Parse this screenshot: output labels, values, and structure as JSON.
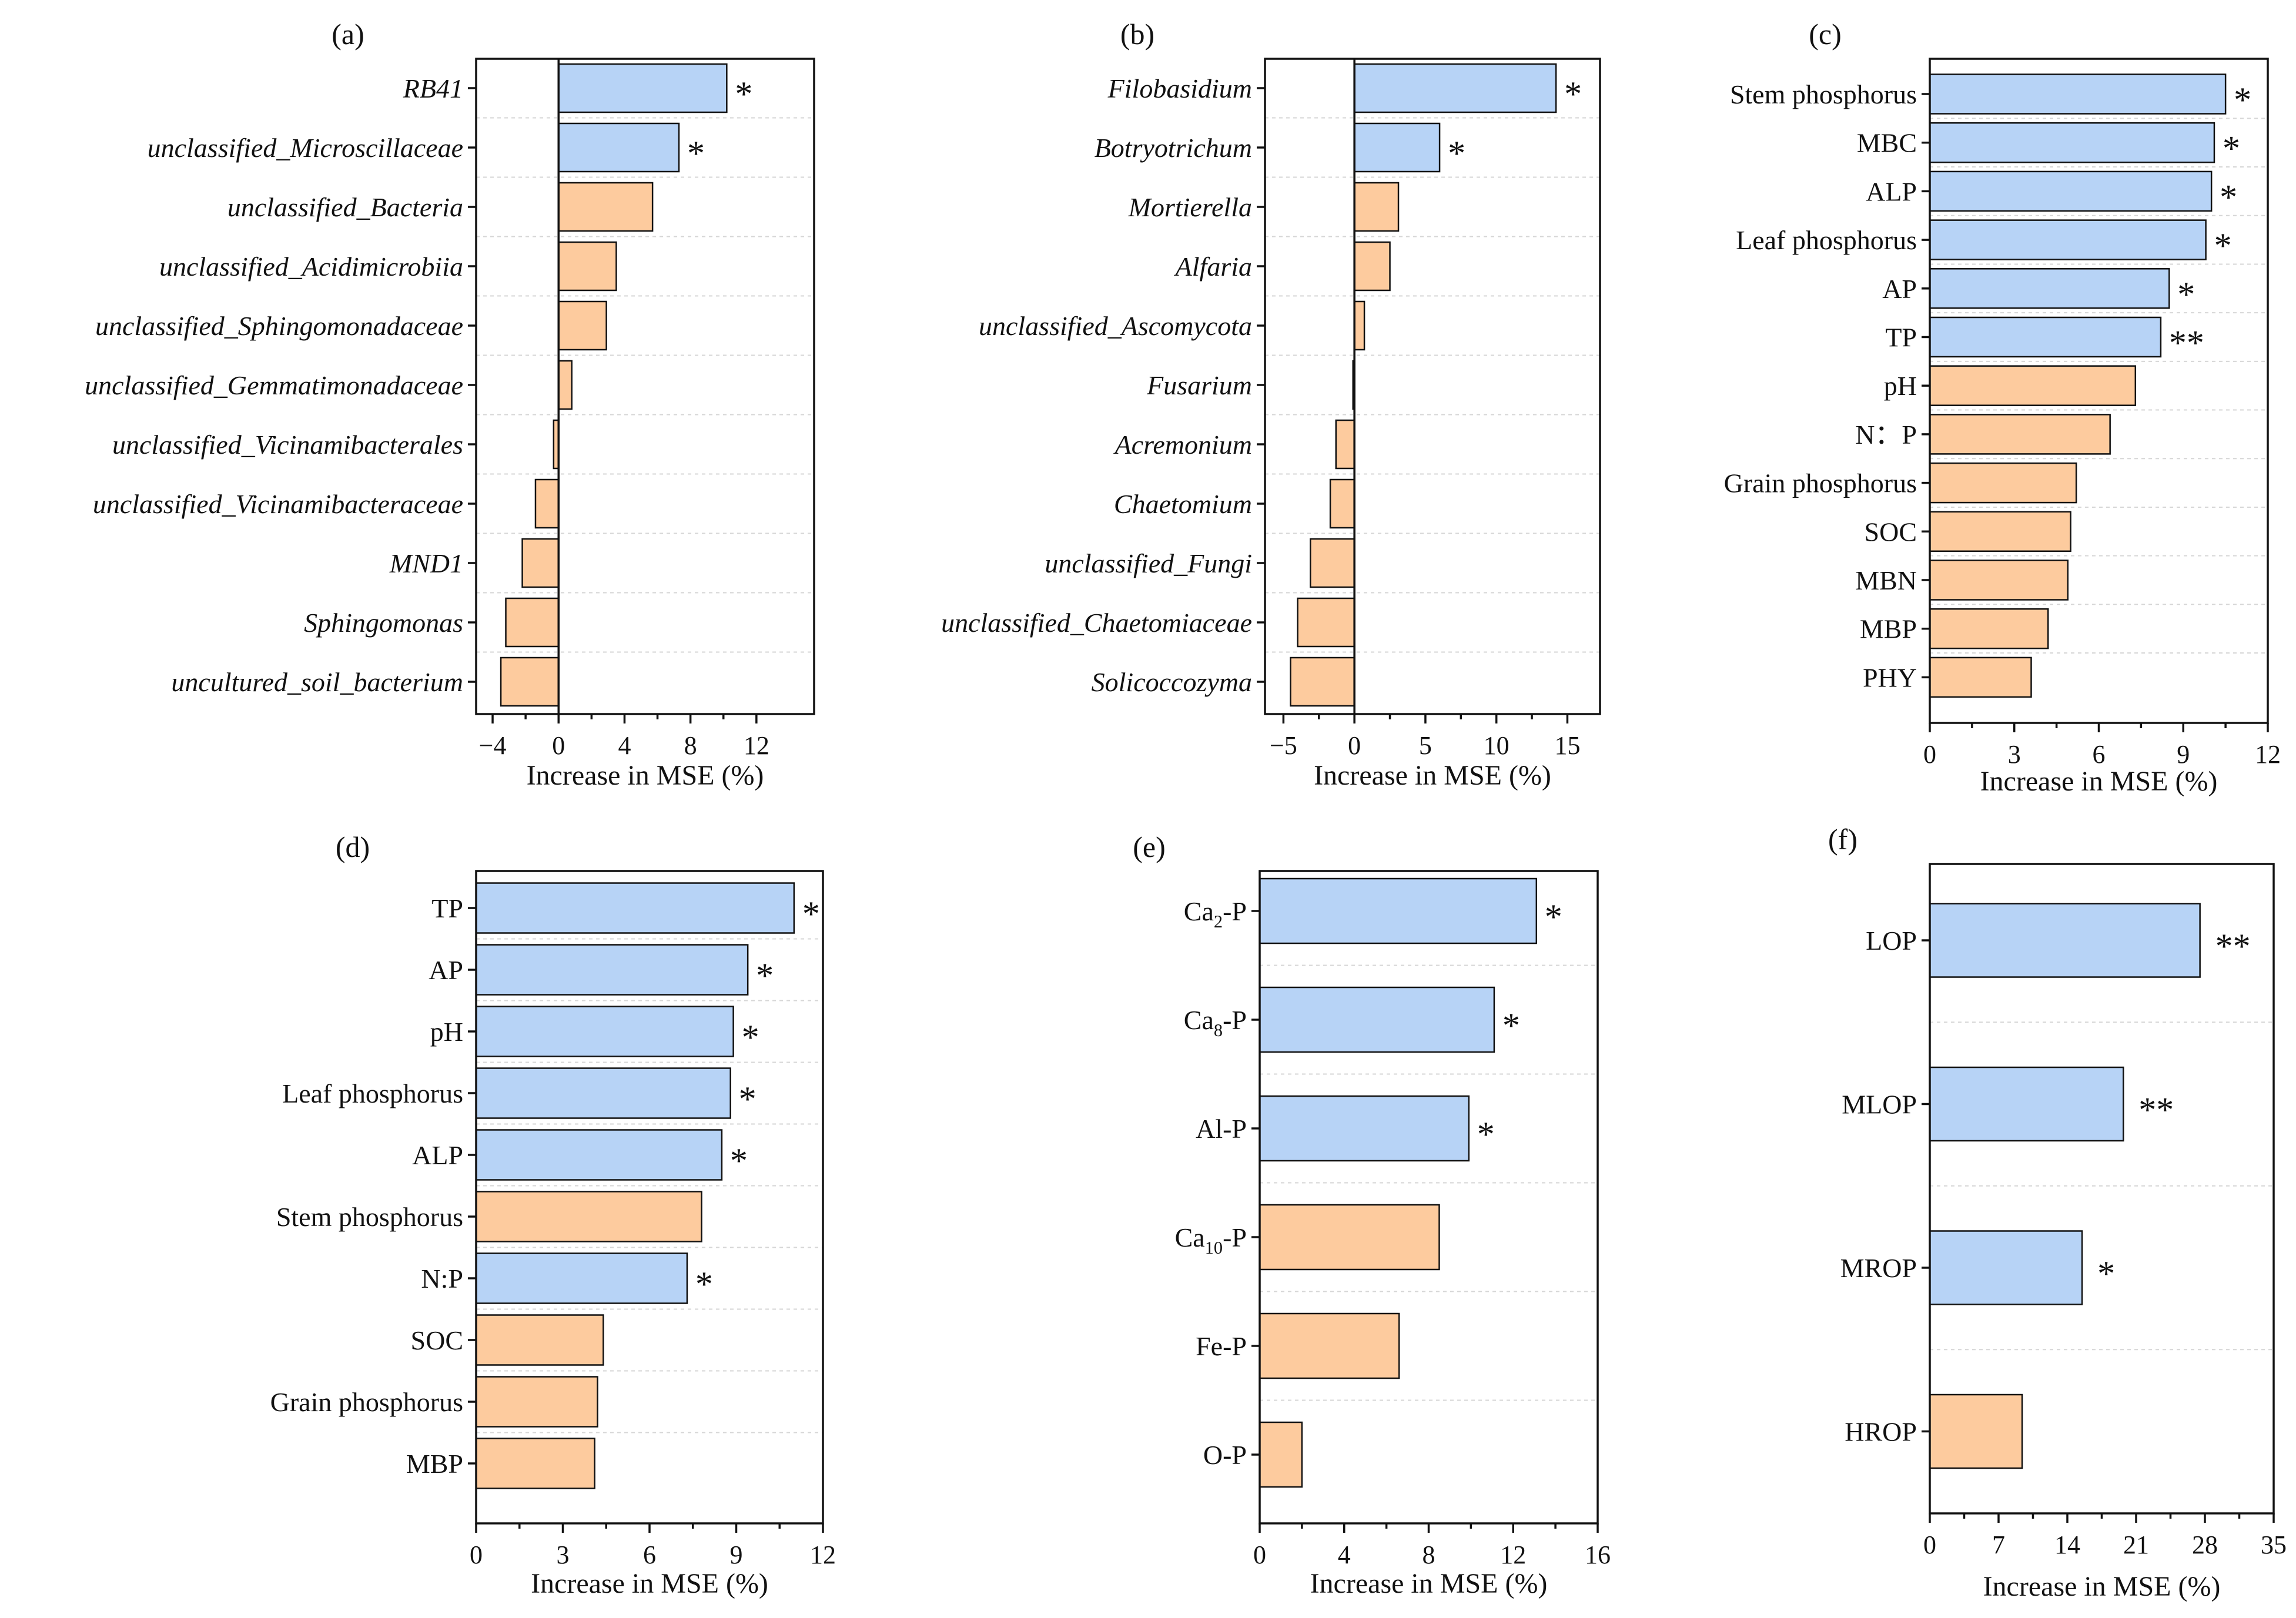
{
  "colors": {
    "significant": "#b7d3f6",
    "non_significant": "#fdcb9e",
    "axis": "#111111",
    "grid": "#d6d6d6"
  },
  "chart_data": [
    {
      "panel_label": "(a)",
      "type": "bar",
      "orientation": "horizontal",
      "italic_labels": true,
      "xlabel": "Increase in MSE (%)",
      "xlim": [
        -5,
        15.5
      ],
      "xticks": [
        -4,
        0,
        4,
        8,
        12
      ],
      "xtick_labels": [
        "−4",
        "0",
        "4",
        "8",
        "12"
      ],
      "categories": [
        "RB41",
        "unclassified_Microscillaceae",
        "unclassified_Bacteria",
        "unclassified_Acidimicrobiia",
        "unclassified_Sphingomonadaceae",
        "unclassified_Gemmatimonadaceae",
        "unclassified_Vicinamibacterales",
        "unclassified_Vicinamibacteraceae",
        "MND1",
        "Sphingomonas",
        "uncultured_soil_bacterium"
      ],
      "values": [
        10.2,
        7.3,
        5.7,
        3.5,
        2.9,
        0.8,
        -0.3,
        -1.4,
        -2.2,
        -3.2,
        -3.5
      ],
      "significance": [
        "*",
        "*",
        "",
        "",
        "",
        "",
        "",
        "",
        "",
        "",
        ""
      ]
    },
    {
      "panel_label": "(b)",
      "type": "bar",
      "orientation": "horizontal",
      "italic_labels": true,
      "xlabel": "Increase in MSE (%)",
      "xlim": [
        -6.3,
        17.3
      ],
      "xticks": [
        -5,
        0,
        5,
        10,
        15
      ],
      "xtick_labels": [
        "−5",
        "0",
        "5",
        "10",
        "15"
      ],
      "categories": [
        "Filobasidium",
        "Botryotrichum",
        "Mortierella",
        "Alfaria",
        "unclassified_Ascomycota",
        "Fusarium",
        "Acremonium",
        "Chaetomium",
        "unclassified_Fungi",
        "unclassified_Chaetomiaceae",
        "Solicoccozyma"
      ],
      "values": [
        14.2,
        6.0,
        3.1,
        2.5,
        0.7,
        -0.1,
        -1.3,
        -1.7,
        -3.1,
        -4.0,
        -4.5
      ],
      "significance": [
        "*",
        "*",
        "",
        "",
        "",
        "",
        "",
        "",
        "",
        "",
        ""
      ]
    },
    {
      "panel_label": "(c)",
      "type": "bar",
      "orientation": "horizontal",
      "italic_labels": false,
      "xlabel": "Increase in MSE (%)",
      "xlim": [
        0,
        12
      ],
      "xticks": [
        0,
        3,
        6,
        9,
        12
      ],
      "xtick_labels": [
        "0",
        "3",
        "6",
        "9",
        "12"
      ],
      "categories": [
        "Stem phosphorus",
        "MBC",
        "ALP",
        "Leaf phosphorus",
        "AP",
        "TP",
        "pH",
        "N：P",
        "Grain phosphorus",
        "SOC",
        "MBN",
        "MBP",
        "PHY"
      ],
      "values": [
        10.5,
        10.1,
        10.0,
        9.8,
        8.5,
        8.2,
        7.3,
        6.4,
        5.2,
        5.0,
        4.9,
        4.2,
        3.6
      ],
      "significance": [
        "*",
        "*",
        "*",
        "*",
        "*",
        "**",
        "",
        "",
        "",
        "",
        "",
        "",
        ""
      ]
    },
    {
      "panel_label": "(d)",
      "type": "bar",
      "orientation": "horizontal",
      "italic_labels": false,
      "xlabel": "Increase in MSE (%)",
      "xlim": [
        0,
        12
      ],
      "xticks": [
        0,
        3,
        6,
        9,
        12
      ],
      "xtick_labels": [
        "0",
        "3",
        "6",
        "9",
        "12"
      ],
      "categories": [
        "TP",
        "AP",
        "pH",
        "Leaf phosphorus",
        "ALP",
        "Stem phosphorus",
        "N:P",
        "SOC",
        "Grain phosphorus",
        "MBP"
      ],
      "values": [
        11.0,
        9.4,
        8.9,
        8.8,
        8.5,
        7.8,
        7.3,
        4.4,
        4.2,
        4.1
      ],
      "significance": [
        "*",
        "*",
        "*",
        "*",
        "*",
        "",
        "*",
        "",
        "",
        ""
      ]
    },
    {
      "panel_label": "(e)",
      "type": "bar",
      "orientation": "horizontal",
      "italic_labels": false,
      "xlabel": "Increase in MSE (%)",
      "xlim": [
        0,
        16
      ],
      "xticks": [
        0,
        4,
        8,
        12,
        16
      ],
      "xtick_labels": [
        "0",
        "4",
        "8",
        "12",
        "16"
      ],
      "categories": [
        {
          "main": "Ca",
          "sub": "2",
          "tail": "-P"
        },
        {
          "main": "Ca",
          "sub": "8",
          "tail": "-P"
        },
        {
          "main": "Al-P",
          "sub": "",
          "tail": ""
        },
        {
          "main": "Ca",
          "sub": "10",
          "tail": "-P"
        },
        {
          "main": "Fe-P",
          "sub": "",
          "tail": ""
        },
        {
          "main": "O-P",
          "sub": "",
          "tail": ""
        }
      ],
      "values": [
        13.1,
        11.1,
        9.9,
        8.5,
        6.6,
        2.0
      ],
      "significance": [
        "*",
        "*",
        "*",
        "",
        "",
        ""
      ]
    },
    {
      "panel_label": "(f)",
      "type": "bar",
      "orientation": "horizontal",
      "italic_labels": false,
      "xlabel": "Increase in MSE (%)",
      "xlim": [
        0,
        35
      ],
      "xticks": [
        0,
        7,
        14,
        21,
        28,
        35
      ],
      "xtick_labels": [
        "0",
        "7",
        "14",
        "21",
        "28",
        "35"
      ],
      "categories": [
        "LOP",
        "MLOP",
        "MROP",
        "HROP"
      ],
      "values": [
        27.5,
        19.7,
        15.5,
        9.4
      ],
      "significance": [
        "**",
        "**",
        "*",
        ""
      ]
    }
  ]
}
